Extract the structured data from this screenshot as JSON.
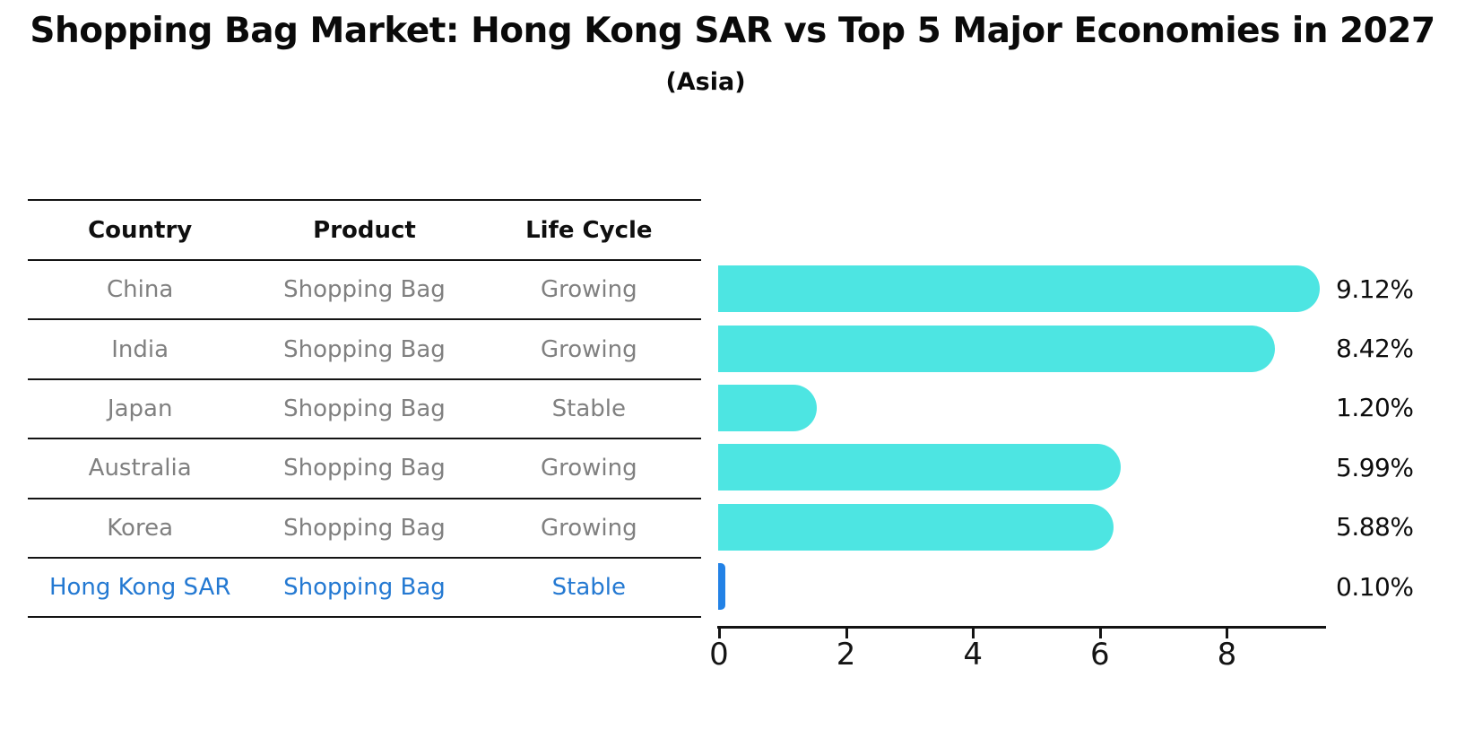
{
  "title": "Shopping Bag Market: Hong Kong SAR vs Top 5 Major Economies in 2027",
  "subtitle": "(Asia)",
  "table": {
    "headers": [
      "Country",
      "Product",
      "Life Cycle"
    ],
    "rows": [
      {
        "country": "China",
        "product": "Shopping Bag",
        "life_cycle": "Growing",
        "highlight": false
      },
      {
        "country": "India",
        "product": "Shopping Bag",
        "life_cycle": "Growing",
        "highlight": false
      },
      {
        "country": "Japan",
        "product": "Shopping Bag",
        "life_cycle": "Stable",
        "highlight": false
      },
      {
        "country": "Australia",
        "product": "Shopping Bag",
        "life_cycle": "Growing",
        "highlight": false
      },
      {
        "country": "Korea",
        "product": "Shopping Bag",
        "life_cycle": "Growing",
        "highlight": false
      },
      {
        "country": "Hong Kong SAR",
        "product": "Shopping Bag",
        "life_cycle": "Stable",
        "highlight": true
      }
    ]
  },
  "chart_data": {
    "type": "bar",
    "orientation": "horizontal",
    "title": "Shopping Bag Market: Hong Kong SAR vs Top 5 Major Economies in 2027",
    "subtitle": "(Asia)",
    "categories": [
      "China",
      "India",
      "Japan",
      "Australia",
      "Korea",
      "Hong Kong SAR"
    ],
    "values": [
      9.12,
      8.42,
      1.2,
      5.99,
      5.88,
      0.1
    ],
    "value_labels": [
      "9.12%",
      "8.42%",
      "1.20%",
      "5.99%",
      "5.88%",
      "0.10%"
    ],
    "xticks": [
      0,
      2,
      4,
      6,
      8
    ],
    "xlim": [
      0,
      9.6
    ],
    "grid": false,
    "legend_position": "none",
    "bar_color": "#4de5e2",
    "highlight_color": "#2382e6",
    "highlight_index": 5,
    "highlight_text_color": "#2479d2"
  }
}
